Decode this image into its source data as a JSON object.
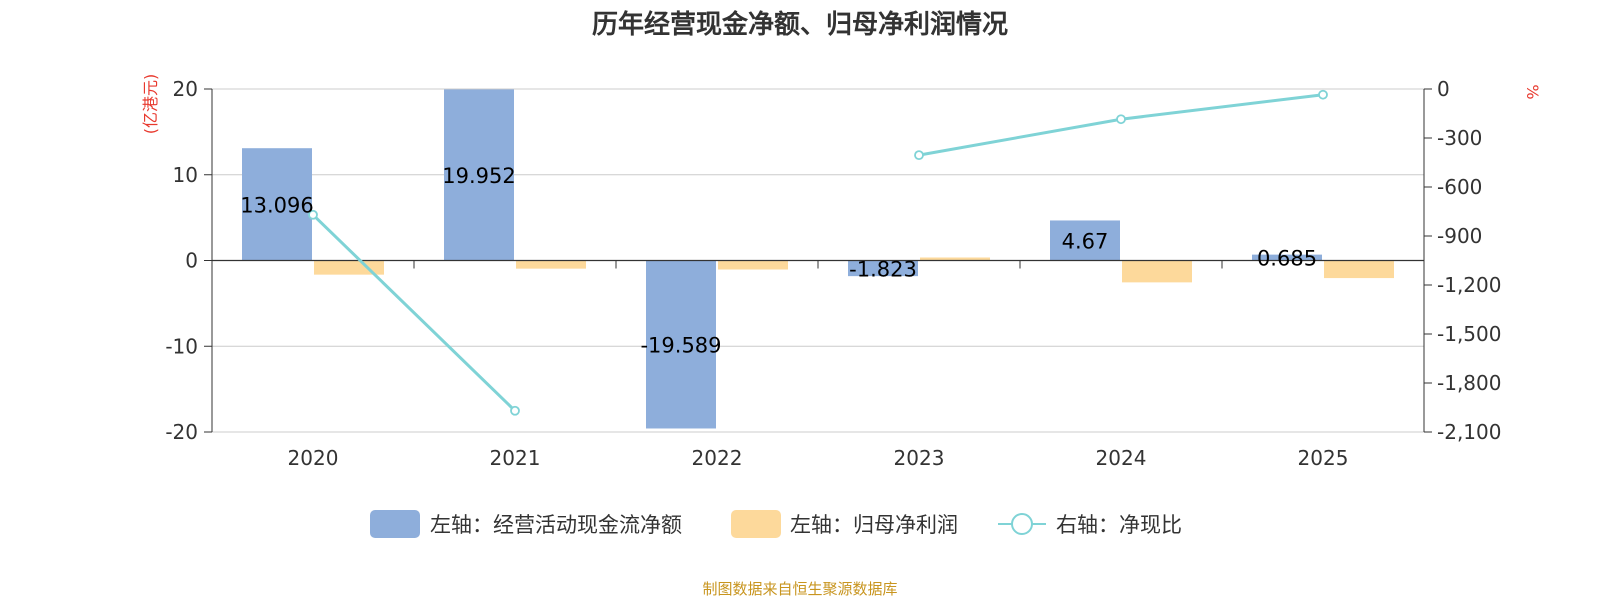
{
  "chart_data": {
    "type": "bar",
    "title": "历年经营现金净额、归母净利润情况",
    "categories": [
      "2020",
      "2021",
      "2022",
      "2023",
      "2024",
      "2025"
    ],
    "left_axis": {
      "unit": "(亿港元)",
      "ylim": [
        -20,
        20
      ],
      "ticks": [
        20,
        10,
        0,
        -10,
        -20
      ],
      "tick_labels": [
        "20",
        "10",
        "0",
        "-10",
        "-20"
      ]
    },
    "right_axis": {
      "unit": "%",
      "ylim": [
        -2100,
        0
      ],
      "ticks": [
        0,
        -300,
        -600,
        -900,
        -1200,
        -1500,
        -1800,
        -2100
      ],
      "tick_labels": [
        "0",
        "-300",
        "-600",
        "-900",
        "-1,200",
        "-1,500",
        "-1,800",
        "-2,100"
      ]
    },
    "series": [
      {
        "name": "左轴：经营活动现金流净额",
        "type": "bar",
        "axis": "left",
        "color": "#8eaedb",
        "values": [
          13.096,
          19.952,
          -19.589,
          -1.823,
          4.67,
          0.685
        ],
        "labels": [
          "13.096",
          "19.952",
          "-19.589",
          "-1.823",
          "4.67",
          "0.685"
        ]
      },
      {
        "name": "左轴：归母净利润",
        "type": "bar",
        "axis": "left",
        "color": "#fdd99b",
        "values": [
          -1.65,
          -0.95,
          -1.05,
          0.35,
          -2.55,
          -2.05
        ]
      },
      {
        "name": "右轴：净现比",
        "type": "line",
        "axis": "right",
        "color": "#7fd3d6",
        "values": [
          -770,
          -1970,
          null,
          -405,
          -185,
          -35
        ]
      }
    ],
    "grid": true,
    "legend_position": "bottom"
  },
  "source_text": "制图数据来自恒生聚源数据库",
  "colors": {
    "unit_red": "#e8392e",
    "source_gold": "#c8951f",
    "grid": "#cccccc",
    "axis": "#333333"
  }
}
